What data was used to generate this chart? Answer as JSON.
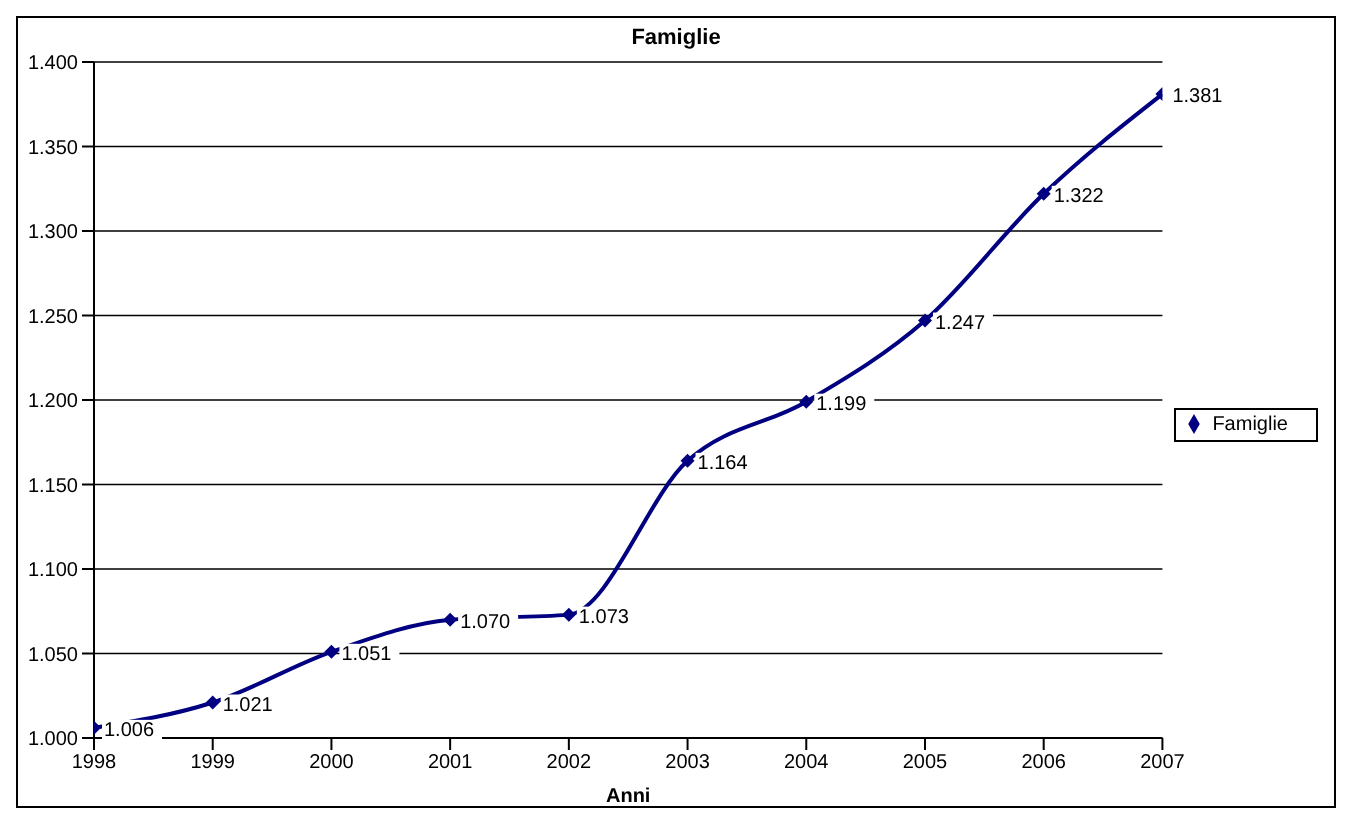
{
  "chart_data": {
    "type": "line",
    "title": "Famiglie",
    "xlabel": "Anni",
    "x": [
      1998,
      1999,
      2000,
      2001,
      2002,
      2003,
      2004,
      2005,
      2006,
      2007
    ],
    "series": [
      {
        "name": "Famiglie",
        "color": "#000080",
        "values": [
          1006,
          1021,
          1051,
          1070,
          1073,
          1164,
          1199,
          1247,
          1322,
          1381
        ],
        "value_labels": [
          "1.006",
          "1.021",
          "1.051",
          "1.070",
          "1.073",
          "1.164",
          "1.199",
          "1.247",
          "1.322",
          "1.381"
        ]
      }
    ],
    "xlim": [
      1998,
      2007
    ],
    "xticks": [
      1998,
      1999,
      2000,
      2001,
      2002,
      2003,
      2004,
      2005,
      2006,
      2007
    ],
    "ylim": [
      1000,
      1400
    ],
    "yticks": [
      {
        "value": 1000,
        "label": "1.000"
      },
      {
        "value": 1050,
        "label": "1.050"
      },
      {
        "value": 1100,
        "label": "1.100"
      },
      {
        "value": 1150,
        "label": "1.150"
      },
      {
        "value": 1200,
        "label": "1.200"
      },
      {
        "value": 1250,
        "label": "1.250"
      },
      {
        "value": 1300,
        "label": "1.300"
      },
      {
        "value": 1350,
        "label": "1.350"
      },
      {
        "value": 1400,
        "label": "1.400"
      }
    ],
    "grid": "y",
    "legend": "right",
    "marker": "diamond",
    "line_style": "solid"
  }
}
